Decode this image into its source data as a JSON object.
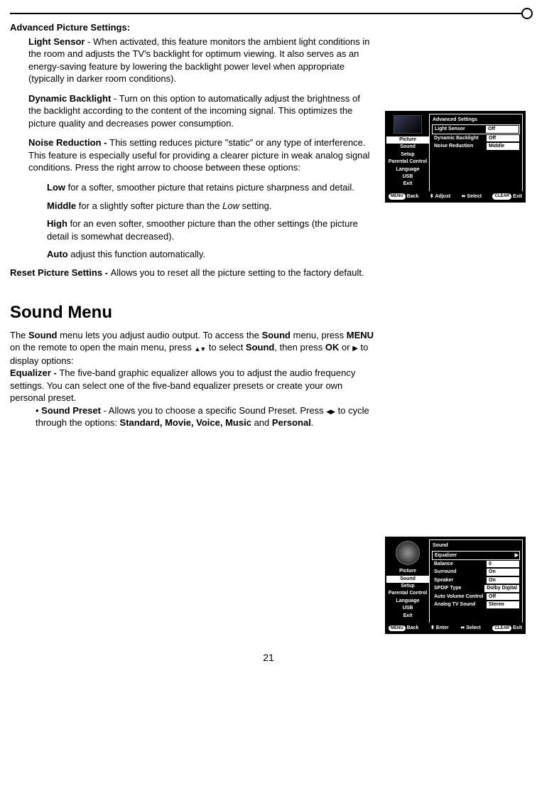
{
  "page_number": "21",
  "section1": {
    "title": "Advanced Picture Settings:",
    "light_sensor": {
      "label": "Light Sensor",
      "text": " - When activated, this feature monitors the ambient light conditions in the room and adjusts the TV's backlight for optimum viewing. It also serves as an energy-saving feature by lowering the backlight power level when appropriate (typically in darker room conditions)."
    },
    "dynamic_backlight": {
      "label": "Dynamic Backlight",
      "text": " - Turn on this option to automatically adjust the brightness of the backlight according to the content of the incoming signal. This optimizes the picture quality and decreases power consumption."
    },
    "noise_reduction": {
      "label": "Noise Reduction - ",
      "text": "This setting reduces picture \"static\" or any type of interference. This feature is especially useful for providing a clearer picture in weak analog signal conditions. Press the right arrow to choose between these options:"
    },
    "nr_low": {
      "label": "Low",
      "text": " for a softer, smoother picture that retains picture sharpness and detail."
    },
    "nr_middle": {
      "label": "Middle",
      "text": " for a slightly softer picture than the ",
      "italic": "Low",
      "text2": " setting."
    },
    "nr_high": {
      "label": "High",
      "text": " for an even softer, smoother picture than the other settings (the picture detail is somewhat decreased)."
    },
    "nr_auto": {
      "label": "Auto",
      "text": " adjust this function automatically."
    },
    "reset": {
      "label": "Reset Picture Settins - ",
      "text": "Allows you to reset all the picture setting to the factory default."
    }
  },
  "section2": {
    "title": "Sound Menu",
    "intro1": "The ",
    "intro_b1": "Sound",
    "intro2": " menu lets you adjust audio output. To access the ",
    "intro_b2": "Sound",
    "intro3": " menu, press ",
    "intro_b3": "MENU",
    "intro4": " on the remote to open the main menu, press ",
    "intro5": " to select ",
    "intro_b4": "Sound",
    "intro6": ", then press ",
    "intro_b5": "OK",
    "intro7": " or ",
    "intro8": " to display options:",
    "equalizer": {
      "label": "Equalizer - ",
      "text": "The five-band graphic equalizer allows you to adjust the audio frequency settings. You can select one of the five-band equalizer presets or create your own personal preset."
    },
    "sound_preset": {
      "label": "Sound Preset",
      "text1": " - Allows you to choose a specific Sound Preset. Press ",
      "text2": " to cycle through the options: ",
      "b1": "Standard, Movie, Voice, Music",
      "text3": " and ",
      "b2": "Personal",
      "text4": "."
    }
  },
  "osd1": {
    "title": "Advanced Settings",
    "menu": [
      "Picture",
      "Sound",
      "Setup",
      "Parental Control",
      "Language",
      "USB",
      "Exit"
    ],
    "active": "Picture",
    "icon_type": "tv",
    "rows": [
      {
        "label": "Light Sensor",
        "value": "Off",
        "highlight": true
      },
      {
        "label": "Dynamic Backlight",
        "value": "Off"
      },
      {
        "label": "Noise Reduction",
        "value": "Middle"
      }
    ],
    "foot": {
      "back": "Back",
      "adjust": "Adjust",
      "select": "Select",
      "exit": "Exit",
      "menu_pill": "MENU",
      "clear_pill": "CLEAR"
    }
  },
  "osd2": {
    "title": "Sound",
    "menu": [
      "Picture",
      "Sound",
      "Setup",
      "Parental Control",
      "Language",
      "USB",
      "Exit"
    ],
    "active": "Sound",
    "icon_type": "speaker",
    "rows": [
      {
        "label": "Equalizer",
        "value": "",
        "highlight": true,
        "arrow": true
      },
      {
        "label": "Balance",
        "value": "0"
      },
      {
        "label": "Surround",
        "value": "On"
      },
      {
        "label": "Speaker",
        "value": "On"
      },
      {
        "label": "SPDIF Type",
        "value": "Dolby Digital"
      },
      {
        "label": "Auto Volume Control",
        "value": "Off"
      },
      {
        "label": "Analog TV Sound",
        "value": "Stereo"
      }
    ],
    "foot": {
      "back": "Back",
      "adjust": "Enter",
      "select": "Select",
      "exit": "Exit",
      "menu_pill": "MENU",
      "clear_pill": "CLEAR"
    }
  },
  "colors": {
    "fg": "#000000",
    "bg": "#ffffff",
    "osd_bg": "#000000",
    "osd_fg": "#ffffff"
  }
}
